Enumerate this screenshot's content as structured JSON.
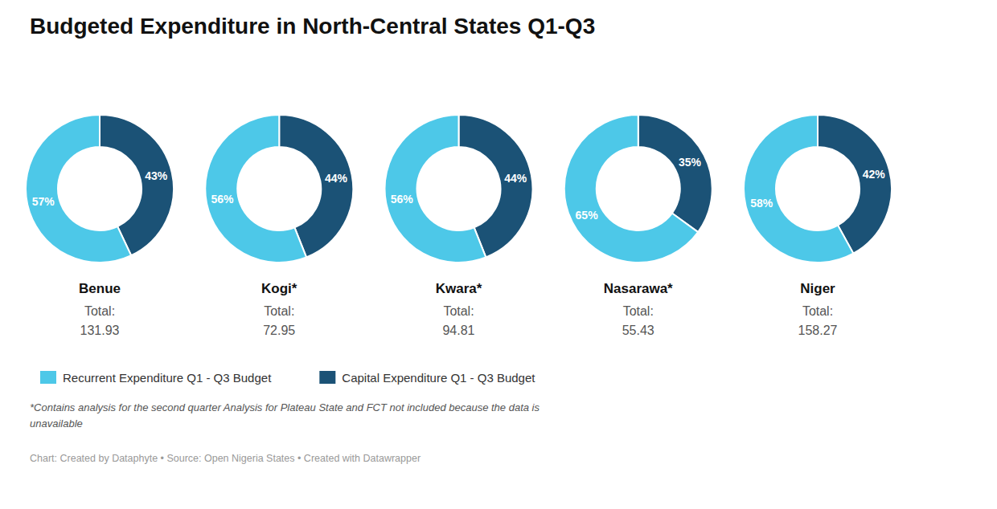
{
  "chart_data": {
    "type": "donut",
    "title": "Budgeted Expenditure in North-Central States Q1-Q3",
    "categories": [
      "Benue",
      "Kogi*",
      "Kwara*",
      "Nasarawa*",
      "Niger"
    ],
    "series": [
      {
        "name": "Recurrent Expenditure Q1 - Q3 Budget",
        "color": "#4DC8E8",
        "values": [
          57,
          56,
          56,
          65,
          58
        ],
        "value_labels": [
          "57%",
          "56%",
          "56%",
          "65%",
          "58%"
        ]
      },
      {
        "name": "Capital Expenditure Q1 - Q3 Budget",
        "color": "#1B5276",
        "values": [
          43,
          44,
          44,
          35,
          42
        ],
        "value_labels": [
          "43%",
          "44%",
          "44%",
          "35%",
          "42%"
        ]
      }
    ],
    "data_labels": true,
    "legend": "bottom",
    "totals_label": "Total:",
    "totals": [
      131.93,
      72.95,
      94.81,
      55.43,
      158.27
    ],
    "footnote": "*Contains analysis for the second quarter Analysis for Plateau State and FCT not included because the data is\nunavailable",
    "source": "Chart: Created by Dataphyte • Source: Open Nigeria States • Created with Datawrapper"
  }
}
